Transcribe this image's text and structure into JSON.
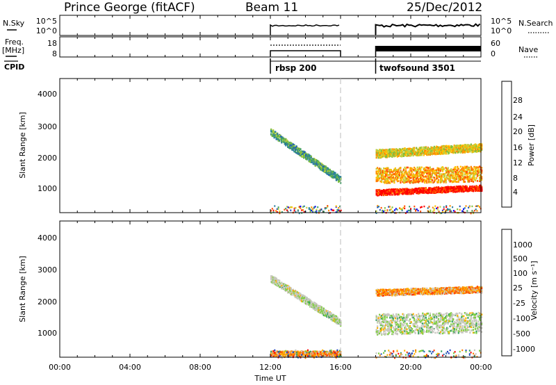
{
  "header": {
    "station": "Prince George (fitACF)",
    "beam": "Beam 11",
    "date": "25/Dec/2012"
  },
  "panel_labels": {
    "nsky": "N.Sky",
    "nsearch": "N.Search",
    "freq_line1": "Freq.",
    "freq_line2": "[MHz]",
    "nave": "Nave",
    "cpid": "CPID"
  },
  "noise_axis": {
    "left_ticks": [
      "10^5",
      "10^0"
    ],
    "right_ticks": [
      "10^5",
      "10^0"
    ]
  },
  "freq_axis": {
    "left_ticks": [
      "18",
      "8"
    ],
    "right_ticks": [
      "60",
      "0"
    ]
  },
  "cpid_labels": [
    {
      "text": "rbsp 200",
      "start_hour": 12.0
    },
    {
      "text": "twofsound 3501",
      "start_hour": 18.0
    }
  ],
  "colors": {
    "power_scale": [
      "#0000ff",
      "#1f4fbf",
      "#2b7fa0",
      "#3fa066",
      "#7fbf3f",
      "#bfd03f",
      "#ffc000",
      "#ff8c00",
      "#ff5000",
      "#ff0000"
    ],
    "velocity_scale": [
      "#1f3fbf",
      "#2f6fbf",
      "#2f9f5f",
      "#7fcf3f",
      "#c8c8c0",
      "#c8c8c0",
      "#ffb000",
      "#ff8000",
      "#ff4000",
      "#ff0000"
    ]
  },
  "chart_data": [
    {
      "type": "heatmap",
      "name": "power",
      "ylabel": "Slant Range [km]",
      "colorbar_label": "Power [dB]",
      "colorbar_ticks": [
        "28",
        "24",
        "20",
        "16",
        "12",
        "8",
        "4"
      ],
      "yticks": [
        "4000",
        "3000",
        "2000",
        "1000"
      ],
      "ylim": [
        180,
        4500
      ],
      "xlim": [
        0,
        24
      ],
      "data_windows": [
        [
          12.0,
          16.0
        ],
        [
          18.0,
          24.0
        ]
      ],
      "features": [
        {
          "start": [
            12.0,
            2800
          ],
          "end": [
            16.0,
            1250
          ],
          "level": 0.35,
          "width": 220
        },
        {
          "start": [
            18.0,
            2100
          ],
          "end": [
            24.0,
            2300
          ],
          "level": 0.6,
          "width": 260
        },
        {
          "start": [
            18.0,
            1400
          ],
          "end": [
            24.0,
            1450
          ],
          "level": 0.7,
          "width": 500
        },
        {
          "start": [
            18.0,
            850
          ],
          "end": [
            24.0,
            1000
          ],
          "level": 0.95,
          "width": 180
        }
      ]
    },
    {
      "type": "heatmap",
      "name": "velocity",
      "ylabel": "Slant Range [km]",
      "colorbar_label": "Velocity [m s⁻¹]",
      "colorbar_ticks": [
        "1000",
        "500",
        "100",
        "25",
        "-25",
        "-100",
        "-500",
        "-1000"
      ],
      "yticks": [
        "4000",
        "3000",
        "2000",
        "1000"
      ],
      "ylim": [
        180,
        4500
      ],
      "xlim": [
        0,
        24
      ],
      "data_windows": [
        [
          12.0,
          16.0
        ],
        [
          18.0,
          24.0
        ]
      ],
      "features": [
        {
          "start": [
            12.0,
            2700
          ],
          "end": [
            16.0,
            1300
          ],
          "level": 0.45,
          "width": 220
        },
        {
          "start": [
            18.0,
            2250
          ],
          "end": [
            24.0,
            2350
          ],
          "level": 0.7,
          "width": 200
        },
        {
          "start": [
            18.0,
            1250
          ],
          "end": [
            24.0,
            1300
          ],
          "level": 0.45,
          "width": 650
        },
        {
          "start": [
            12.0,
            320
          ],
          "end": [
            16.0,
            320
          ],
          "level": 0.7,
          "width": 150
        }
      ]
    }
  ],
  "time_axis": {
    "xlabel": "Time UT",
    "ticks": [
      "00:00",
      "04:00",
      "08:00",
      "12:00",
      "16:00",
      "20:00",
      "00:00"
    ]
  }
}
